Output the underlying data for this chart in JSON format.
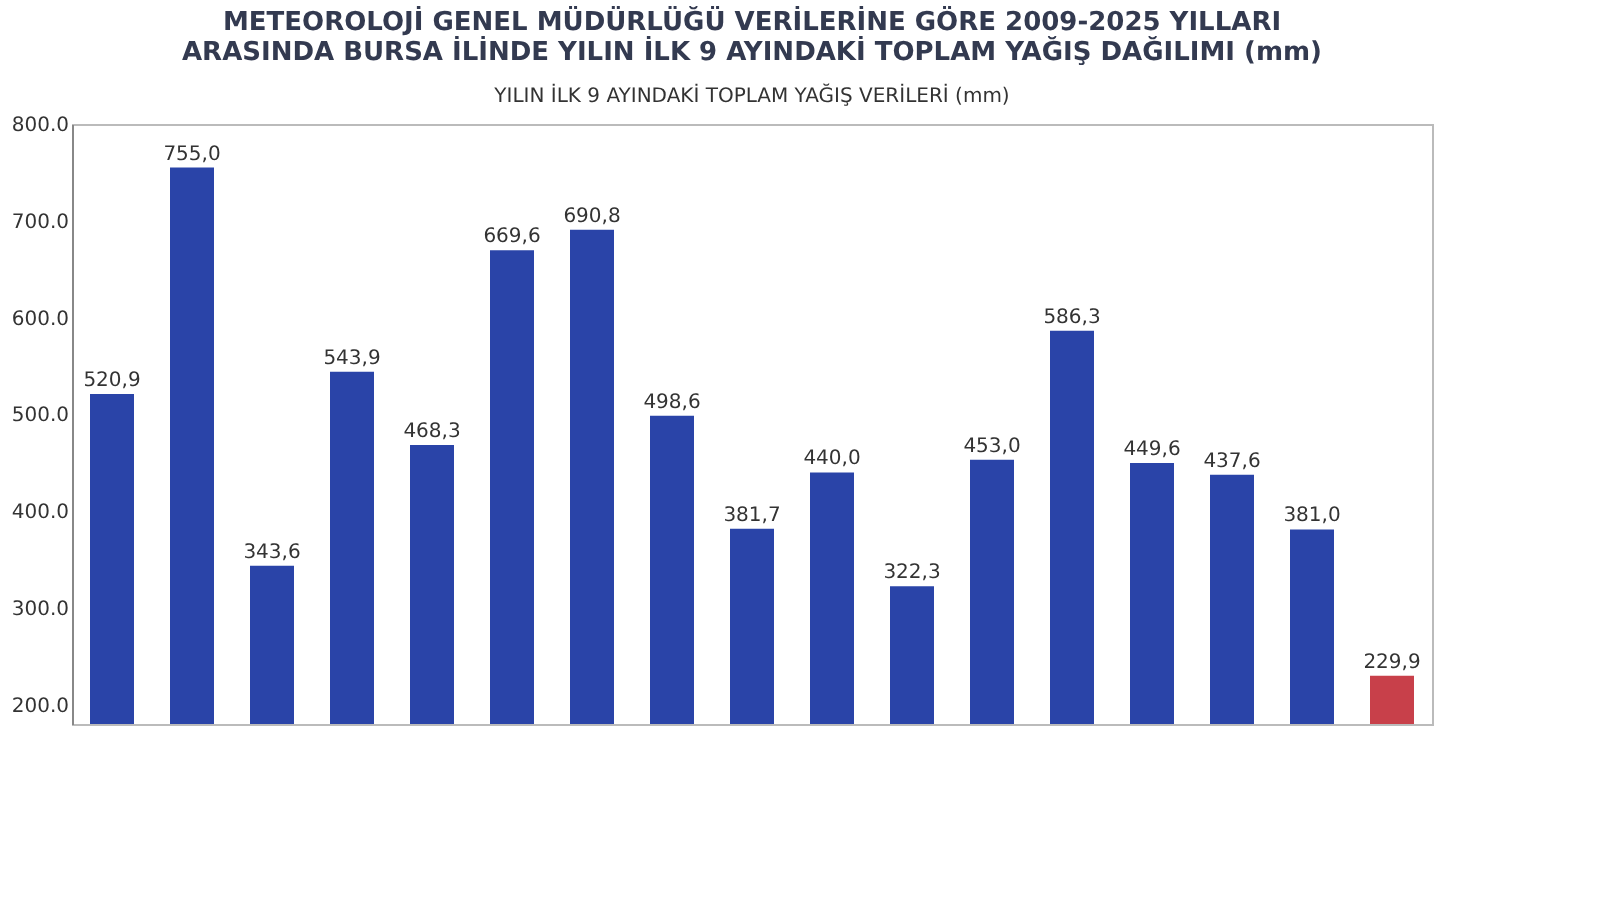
{
  "chart_data": {
    "type": "bar",
    "title": "METEOROLOJİ GENEL MÜDÜRLÜĞÜ VERİLERİNE GÖRE 2009-2025 YILLARI ARASINDA BURSA İLİNDE YILIN İLK 9 AYINDAKİ TOPLAM YAĞIŞ DAĞILIMI (mm)",
    "subtitle": "YILIN İLK 9 AYINDAKİ TOPLAM YAĞIŞ VERİLERİ (mm)",
    "categories": [
      null,
      null,
      null,
      null,
      null,
      null,
      null,
      null,
      null,
      null,
      null,
      null,
      null,
      null,
      null,
      null,
      null
    ],
    "values": [
      520.9,
      755.0,
      343.6,
      543.9,
      468.3,
      669.6,
      690.8,
      498.6,
      381.7,
      440.0,
      322.3,
      453.0,
      586.3,
      449.6,
      437.6,
      381.0,
      229.9
    ],
    "value_labels": [
      "520,9",
      "755,0",
      "343,6",
      "543,9",
      "468,3",
      "669,6",
      "690,8",
      "498,6",
      "381,7",
      "440,0",
      "322,3",
      "453,0",
      "586,3",
      "449,6",
      "437,6",
      "381,0",
      "229,9"
    ],
    "colors": [
      "#2a44a8",
      "#2a44a8",
      "#2a44a8",
      "#2a44a8",
      "#2a44a8",
      "#2a44a8",
      "#2a44a8",
      "#2a44a8",
      "#2a44a8",
      "#2a44a8",
      "#2a44a8",
      "#2a44a8",
      "#2a44a8",
      "#2a44a8",
      "#2a44a8",
      "#2a44a8",
      "#c8404a"
    ],
    "ylim": [
      180,
      800
    ],
    "yticks": [
      {
        "value": 200,
        "label": "200.0"
      },
      {
        "value": 300,
        "label": "300.0"
      },
      {
        "value": 400,
        "label": "400.0"
      },
      {
        "value": 500,
        "label": "500.0"
      },
      {
        "value": 600,
        "label": "600.0"
      },
      {
        "value": 700,
        "label": "700.0"
      },
      {
        "value": 800,
        "label": "800.0"
      }
    ],
    "tick_labels": "y",
    "grid": false
  }
}
